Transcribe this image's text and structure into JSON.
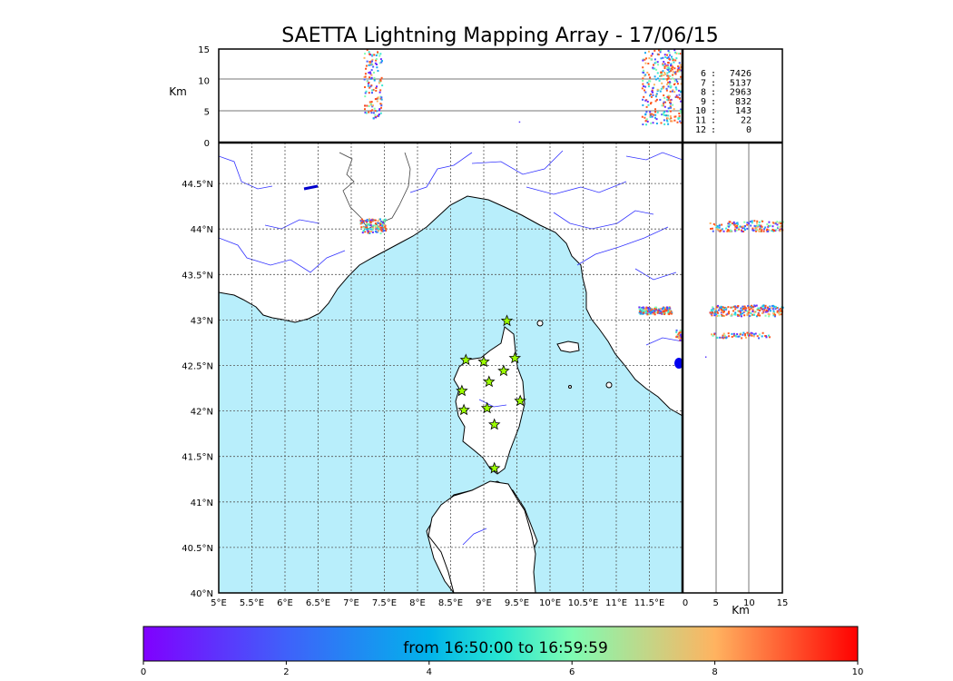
{
  "chart_data": {
    "type": "scatter",
    "title": "SAETTA Lightning Mapping Array - 17/06/15",
    "map": {
      "lon_ticks": [
        "5°E",
        "5.5°E",
        "6°E",
        "6.5°E",
        "7°E",
        "7.5°E",
        "8°E",
        "8.5°E",
        "9°E",
        "9.5°E",
        "10°E",
        "10.5°E",
        "11°E",
        "11.5°E"
      ],
      "lat_ticks": [
        "40°N",
        "40.5°N",
        "41°N",
        "41.5°N",
        "42°N",
        "42.5°N",
        "43°N",
        "43.5°N",
        "44°N",
        "44.5°N"
      ],
      "xlim": [
        5,
        12
      ],
      "ylim": [
        40,
        44.95
      ],
      "grid": true,
      "stations": [
        {
          "lon": 9.35,
          "lat": 42.99
        },
        {
          "lon": 8.73,
          "lat": 42.56
        },
        {
          "lon": 9.0,
          "lat": 42.54
        },
        {
          "lon": 9.47,
          "lat": 42.58
        },
        {
          "lon": 9.3,
          "lat": 42.44
        },
        {
          "lon": 9.08,
          "lat": 42.32
        },
        {
          "lon": 8.67,
          "lat": 42.22
        },
        {
          "lon": 9.55,
          "lat": 42.11
        },
        {
          "lon": 8.7,
          "lat": 42.01
        },
        {
          "lon": 9.05,
          "lat": 42.03
        },
        {
          "lon": 9.16,
          "lat": 41.85
        },
        {
          "lon": 9.16,
          "lat": 41.37
        }
      ],
      "source_clusters": [
        {
          "lon": 7.32,
          "lat": 44.04
        },
        {
          "lon": 11.58,
          "lat": 43.11
        },
        {
          "lon": 11.93,
          "lat": 42.84
        }
      ]
    },
    "top_panel": {
      "ylabel": "Km",
      "y_ticks": [
        "0",
        "5",
        "10",
        "15"
      ],
      "ylim": [
        0,
        15
      ],
      "hlines": [
        5,
        10
      ]
    },
    "side_panel": {
      "xlabel": "Km",
      "x_ticks": [
        "0",
        "5",
        "10",
        "15"
      ],
      "xlim": [
        0,
        15
      ],
      "vlines": [
        5,
        10
      ]
    },
    "station_counts": [
      {
        "stations": "6",
        "count": "7426",
        "color": "#000000"
      },
      {
        "stations": "7",
        "count": "5137",
        "color": "#ff0000"
      },
      {
        "stations": "8",
        "count": "2963",
        "color": "#000000"
      },
      {
        "stations": "9",
        "count": "832",
        "color": "#000000"
      },
      {
        "stations": "10",
        "count": "143",
        "color": "#000000"
      },
      {
        "stations": "11",
        "count": "22",
        "color": "#000000"
      },
      {
        "stations": "12",
        "count": "0",
        "color": "#000000"
      }
    ],
    "colorbar": {
      "label": "from 16:50:00 to 16:59:59",
      "ticks": [
        "0",
        "2",
        "4",
        "6",
        "8",
        "10"
      ],
      "range": [
        0,
        10
      ],
      "colormap": "rainbow"
    },
    "colors": {
      "sea": "#b8eefb",
      "land": "#ffffff",
      "rivers": "#3333ff",
      "station_marker": "#9cff00",
      "dominant_source": "#ff5a20"
    }
  }
}
